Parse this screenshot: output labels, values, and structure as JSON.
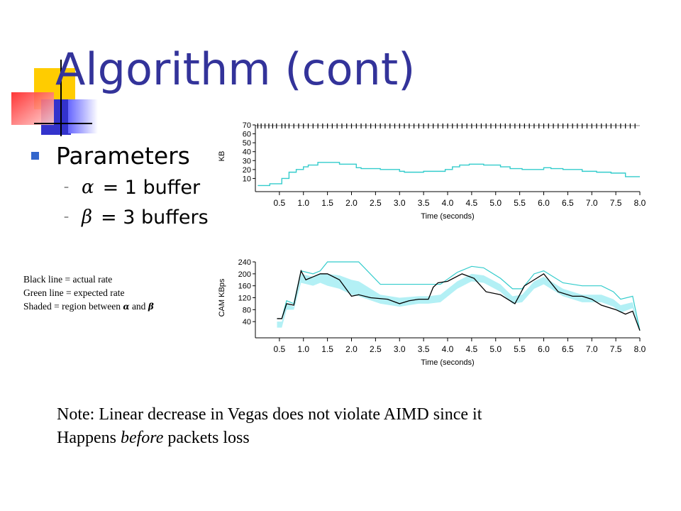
{
  "slide": {
    "title": "Algorithm (cont)",
    "bullet": "Parameters",
    "params": [
      {
        "symbol": "α",
        "text": "= 1 buffer"
      },
      {
        "symbol": "β",
        "text": "= 3 buffers"
      }
    ],
    "legend": {
      "line1": "Black line = actual rate",
      "line2": "Green line = expected rate",
      "line3_prefix": "Shaded = region between",
      "alpha": "α",
      "and": "and",
      "beta": "β"
    },
    "note": {
      "line1": "Note:  Linear decrease in Vegas does not violate AIMD since it",
      "line2_pre": "Happens",
      "line2_em": "before",
      "line2_post": "packets loss"
    },
    "colors": {
      "title": "#33339a",
      "bullet": "#3366cc",
      "expected": "#33cccc",
      "shade": "#b3f0f5",
      "actual": "#000000"
    }
  },
  "chart_data": [
    {
      "type": "line",
      "xlabel": "Time (seconds)",
      "ylabel": "KB",
      "xlim": [
        0,
        8.0
      ],
      "ylim": [
        0,
        70
      ],
      "xticks": [
        0.5,
        1.0,
        1.5,
        2.0,
        2.5,
        3.0,
        3.5,
        4.0,
        4.5,
        5.0,
        5.5,
        6.0,
        6.5,
        7.0,
        7.5,
        8.0
      ],
      "xtick_labels": [
        "0.5",
        "1.0",
        "1.5",
        "2.0",
        "2.5",
        "3.0",
        "3.5",
        "4.0",
        "4.5",
        "5.0",
        "5.5",
        "6.0",
        "6.5",
        "7.0",
        "7.5",
        "8.0"
      ],
      "yticks": [
        10,
        20,
        30,
        40,
        50,
        60,
        70
      ],
      "ytick_labels": [
        "10",
        "20",
        "30",
        "40",
        "50",
        "60",
        "70"
      ],
      "series": [
        {
          "color": "#33cccc",
          "step": true,
          "x": [
            0.05,
            0.3,
            0.55,
            0.7,
            0.85,
            1.0,
            1.1,
            1.3,
            1.5,
            1.75,
            2.1,
            2.2,
            2.6,
            3.0,
            3.1,
            3.4,
            3.5,
            3.7,
            3.95,
            4.1,
            4.25,
            4.45,
            4.75,
            5.1,
            5.3,
            5.55,
            6.0,
            6.15,
            6.4,
            6.8,
            7.1,
            7.4,
            7.7,
            8.0
          ],
          "y": [
            2,
            4,
            10,
            17,
            20,
            23,
            25,
            28,
            28,
            26,
            22,
            21,
            20,
            18,
            17,
            17,
            18,
            18,
            20,
            23,
            25,
            26,
            25,
            23,
            21,
            20,
            22,
            21,
            20,
            18,
            17,
            16,
            12,
            12
          ]
        }
      ],
      "events_x": [
        0.05,
        0.12,
        0.2,
        0.28,
        0.36,
        0.44,
        0.55,
        0.62,
        0.7,
        0.8,
        0.9,
        1.0,
        1.1,
        1.2,
        1.3,
        1.4,
        1.5,
        1.6,
        1.7,
        1.8,
        1.9,
        2.0,
        2.1,
        2.2,
        2.3,
        2.4,
        2.5,
        2.6,
        2.7,
        2.8,
        2.9,
        3.0,
        3.1,
        3.2,
        3.3,
        3.4,
        3.5,
        3.6,
        3.7,
        3.8,
        3.9,
        4.0,
        4.1,
        4.2,
        4.3,
        4.4,
        4.5,
        4.6,
        4.7,
        4.8,
        4.9,
        5.0,
        5.1,
        5.2,
        5.3,
        5.4,
        5.5,
        5.6,
        5.7,
        5.8,
        5.9,
        6.0,
        6.1,
        6.2,
        6.3,
        6.4,
        6.5,
        6.6,
        6.7,
        6.8,
        6.9,
        7.0,
        7.1,
        7.2,
        7.3,
        7.4,
        7.5,
        7.6,
        7.7,
        7.8,
        7.9
      ]
    },
    {
      "type": "area",
      "xlabel": "Time (seconds)",
      "ylabel": "CAM KBps",
      "xlim": [
        0,
        8.0
      ],
      "ylim": [
        0,
        240
      ],
      "xticks": [
        0.5,
        1.0,
        1.5,
        2.0,
        2.5,
        3.0,
        3.5,
        4.0,
        4.5,
        5.0,
        5.5,
        6.0,
        6.5,
        7.0,
        7.5,
        8.0
      ],
      "xtick_labels": [
        "0.5",
        "1.0",
        "1.5",
        "2.0",
        "2.5",
        "3.0",
        "3.5",
        "4.0",
        "4.5",
        "5.0",
        "5.5",
        "6.0",
        "6.5",
        "7.0",
        "7.5",
        "8.0"
      ],
      "yticks": [
        40,
        80,
        120,
        160,
        200,
        240
      ],
      "ytick_labels": [
        "40",
        "80",
        "120",
        "160",
        "200",
        "240"
      ],
      "series": [
        {
          "role": "expected",
          "color": "#33cccc",
          "x": [
            0.45,
            0.55,
            0.65,
            0.8,
            0.95,
            1.2,
            1.35,
            1.5,
            1.75,
            2.0,
            2.15,
            2.6,
            3.0,
            3.4,
            3.6,
            3.85,
            4.2,
            4.5,
            4.75,
            5.1,
            5.35,
            5.55,
            5.8,
            6.0,
            6.4,
            6.8,
            7.2,
            7.45,
            7.6,
            7.85,
            8.0
          ],
          "y": [
            50,
            50,
            110,
            100,
            210,
            200,
            210,
            240,
            240,
            240,
            240,
            165,
            165,
            165,
            165,
            165,
            205,
            225,
            220,
            185,
            150,
            150,
            200,
            210,
            170,
            160,
            160,
            140,
            115,
            125,
            10
          ]
        },
        {
          "role": "shade-upper",
          "color": "#b3f0f5",
          "x": [
            0.45,
            0.55,
            0.65,
            0.8,
            0.95,
            1.2,
            1.35,
            1.5,
            1.75,
            2.0,
            2.15,
            2.6,
            3.0,
            3.4,
            3.6,
            3.85,
            4.2,
            4.5,
            4.75,
            5.1,
            5.35,
            5.55,
            5.8,
            6.0,
            6.4,
            6.8,
            7.2,
            7.45,
            7.6,
            7.85,
            8.0
          ],
          "y": [
            40,
            40,
            100,
            90,
            200,
            190,
            200,
            200,
            195,
            180,
            175,
            130,
            120,
            125,
            125,
            130,
            175,
            200,
            195,
            165,
            125,
            130,
            175,
            190,
            150,
            130,
            130,
            115,
            95,
            105,
            10
          ]
        },
        {
          "role": "shade-lower",
          "color": "#b3f0f5",
          "x": [
            0.45,
            0.55,
            0.65,
            0.8,
            0.95,
            1.2,
            1.35,
            1.5,
            1.75,
            2.0,
            2.15,
            2.6,
            3.0,
            3.4,
            3.6,
            3.85,
            4.2,
            4.5,
            4.75,
            5.1,
            5.35,
            5.55,
            5.8,
            6.0,
            6.4,
            6.8,
            7.2,
            7.45,
            7.6,
            7.85,
            8.0
          ],
          "y": [
            20,
            20,
            80,
            80,
            170,
            160,
            170,
            160,
            150,
            130,
            125,
            100,
            90,
            100,
            100,
            105,
            150,
            175,
            170,
            140,
            100,
            105,
            150,
            165,
            125,
            105,
            105,
            90,
            70,
            85,
            10
          ]
        },
        {
          "role": "actual",
          "color": "#000000",
          "x": [
            0.45,
            0.55,
            0.65,
            0.8,
            0.95,
            1.05,
            1.2,
            1.35,
            1.5,
            1.75,
            2.0,
            2.15,
            2.4,
            2.75,
            3.0,
            3.2,
            3.4,
            3.6,
            3.7,
            3.8,
            4.0,
            4.3,
            4.55,
            4.8,
            5.1,
            5.4,
            5.6,
            5.8,
            6.0,
            6.3,
            6.6,
            6.8,
            7.0,
            7.2,
            7.5,
            7.7,
            7.85,
            8.0
          ],
          "y": [
            50,
            50,
            100,
            95,
            210,
            180,
            190,
            200,
            200,
            180,
            125,
            130,
            120,
            115,
            100,
            110,
            115,
            115,
            155,
            170,
            175,
            200,
            185,
            140,
            130,
            100,
            160,
            180,
            200,
            140,
            125,
            125,
            115,
            95,
            80,
            65,
            75,
            10
          ]
        }
      ]
    }
  ]
}
